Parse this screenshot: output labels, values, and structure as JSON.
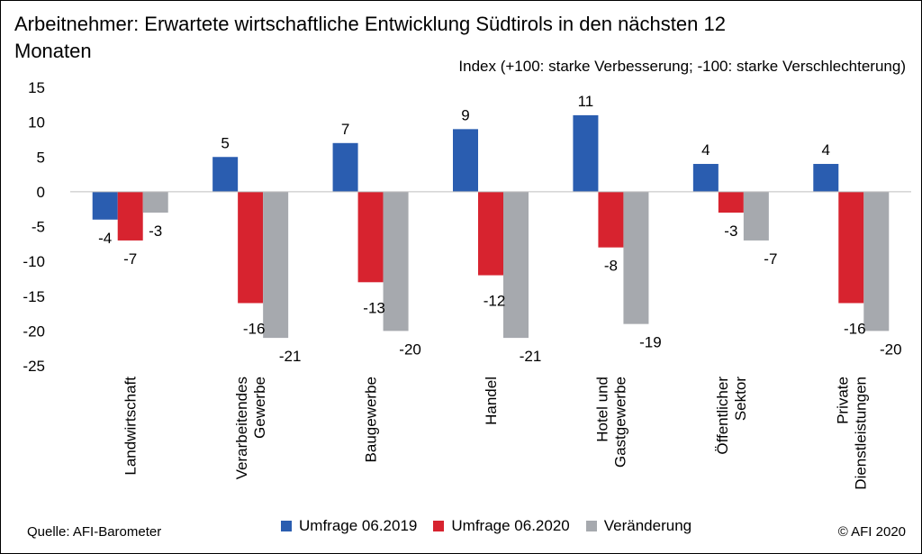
{
  "chart_data": {
    "type": "bar",
    "title": "Arbeitnehmer: Erwartete  wirtschaftliche  Entwicklung Südtirols in den nächsten 12 Monaten",
    "subtitle": "Index (+100: starke Verbesserung;  -100: starke Verschlechterung)",
    "categories": [
      [
        "Landwirtschaft"
      ],
      [
        "Verarbeitendes",
        "Gewerbe"
      ],
      [
        "Baugewerbe"
      ],
      [
        "Handel"
      ],
      [
        "Hotel und",
        "Gastgewerbe"
      ],
      [
        "Öffentlicher",
        "Sektor"
      ],
      [
        "Private",
        "Dienstleistungen"
      ]
    ],
    "series": [
      {
        "name": "Umfrage 06.2019",
        "color": "#2A5DB0",
        "values": [
          -4,
          5,
          7,
          9,
          11,
          4,
          4
        ]
      },
      {
        "name": "Umfrage 06.2020",
        "color": "#D7232F",
        "values": [
          -7,
          -16,
          -13,
          -12,
          -8,
          -3,
          -16
        ]
      },
      {
        "name": "Veränderung",
        "color": "#A6A9AE",
        "values": [
          -3,
          -21,
          -20,
          -21,
          -19,
          -7,
          -20
        ]
      }
    ],
    "ylim": [
      -25,
      15
    ],
    "yticks": [
      15,
      10,
      5,
      0,
      -5,
      -10,
      -15,
      -20,
      -25
    ],
    "grid": false,
    "legend_position": "bottom"
  },
  "footer": {
    "source": "Quelle:  AFI-Barometer",
    "copyright": "© AFI 2020"
  }
}
